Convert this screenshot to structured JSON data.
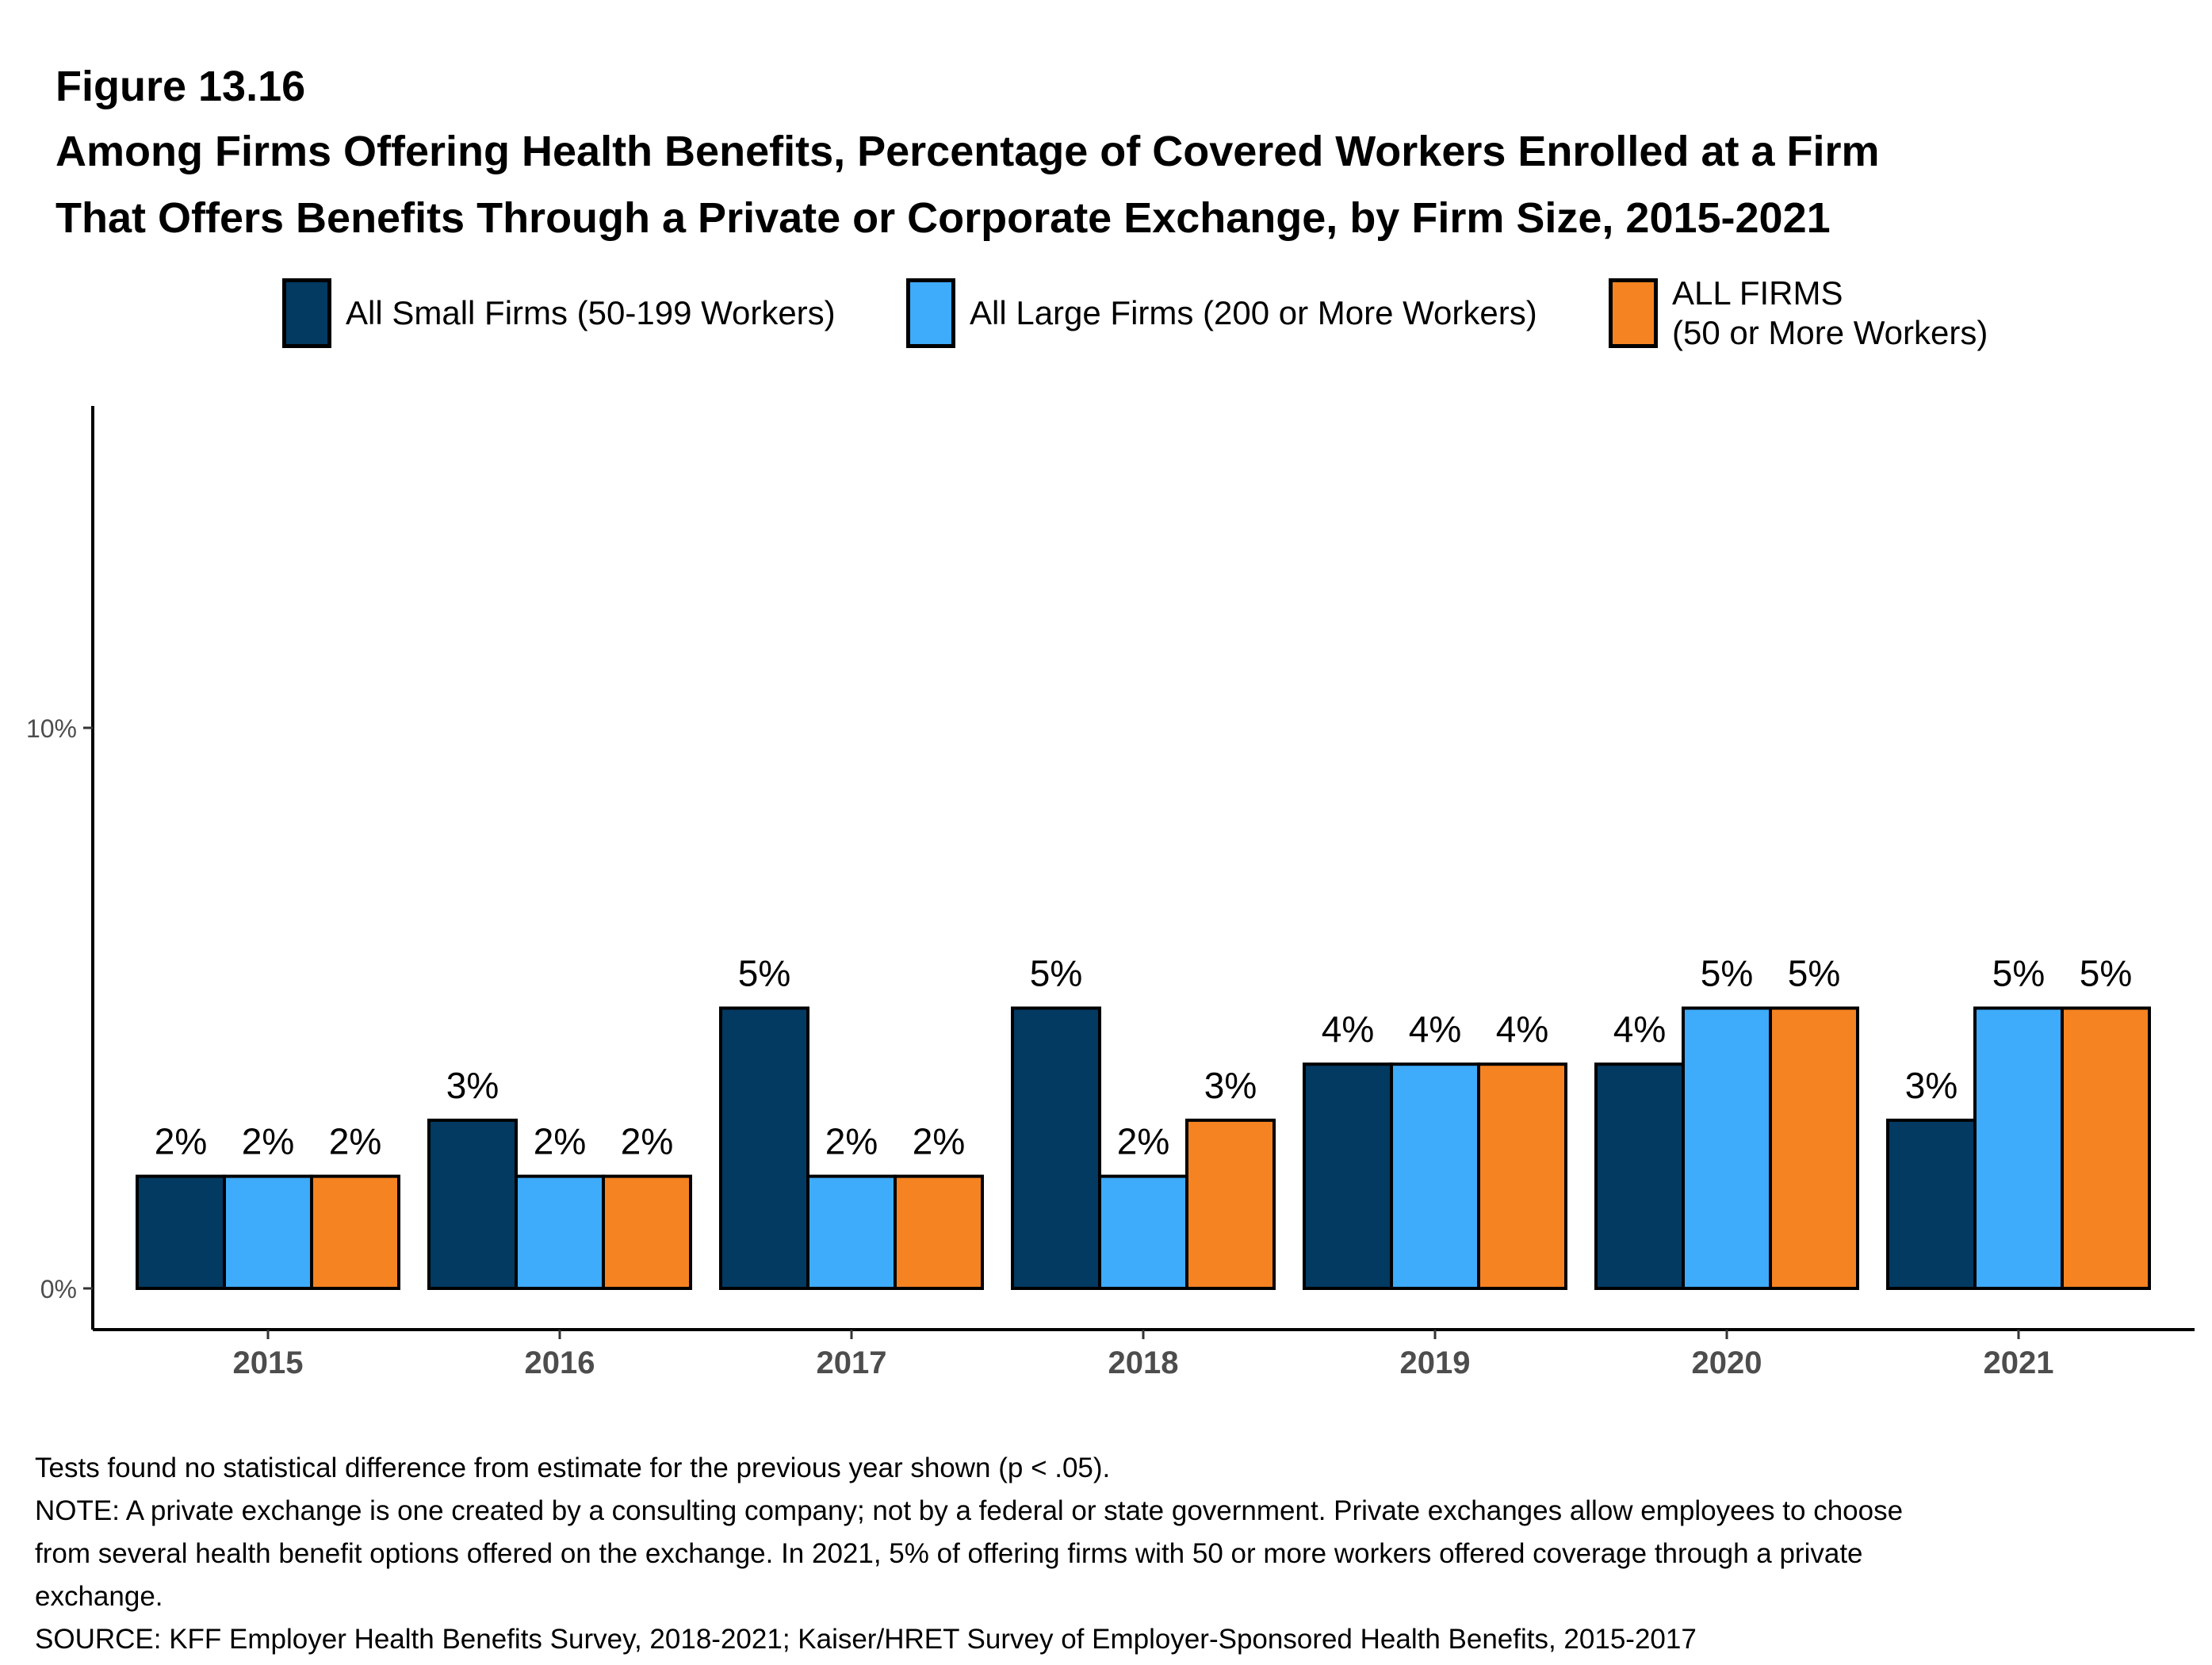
{
  "figure_label": "Figure 13.16",
  "title_lines": [
    "Among Firms Offering Health Benefits, Percentage of Covered Workers Enrolled at a Firm",
    "That Offers Benefits Through a Private or Corporate Exchange, by Firm Size, 2015-2021"
  ],
  "legend": [
    {
      "label": "All Small Firms (50-199 Workers)",
      "color": "#023a62"
    },
    {
      "label": "All Large Firms (200 or More Workers)",
      "color": "#3eabfb"
    },
    {
      "label": "ALL FIRMS\n(50 or More Workers)",
      "color": "#f58322"
    }
  ],
  "chart_data": {
    "type": "bar",
    "title": "Among Firms Offering Health Benefits, Percentage of Covered Workers Enrolled at a Firm That Offers Benefits Through a Private or Corporate Exchange, by Firm Size, 2015-2021",
    "xlabel": "",
    "ylabel": "",
    "categories": [
      "2015",
      "2016",
      "2017",
      "2018",
      "2019",
      "2020",
      "2021"
    ],
    "series": [
      {
        "name": "All Small Firms (50-199 Workers)",
        "color": "#023a62",
        "values": [
          2,
          3,
          5,
          5,
          4,
          4,
          3
        ],
        "labels": [
          "2%",
          "3%",
          "5%",
          "5%",
          "4%",
          "4%",
          "3%"
        ]
      },
      {
        "name": "All Large Firms (200 or More Workers)",
        "color": "#3eabfb",
        "values": [
          2,
          2,
          2,
          2,
          4,
          5,
          5
        ],
        "labels": [
          "2%",
          "2%",
          "2%",
          "2%",
          "4%",
          "5%",
          "5%"
        ]
      },
      {
        "name": "ALL FIRMS (50 or More Workers)",
        "color": "#f58322",
        "values": [
          2,
          2,
          2,
          3,
          4,
          5,
          5
        ],
        "labels": [
          "2%",
          "2%",
          "2%",
          "3%",
          "4%",
          "5%",
          "5%"
        ]
      }
    ],
    "yticks": [
      0,
      10
    ],
    "ytick_labels": [
      "0%",
      "10%"
    ],
    "ylim": [
      -0.4,
      15.7
    ],
    "grid": false,
    "legend_position": "top"
  },
  "footnotes": [
    "Tests found no statistical difference from estimate for the previous year shown (p < .05).",
    "NOTE: A private exchange is one created by a consulting company; not by a federal or state government. Private exchanges allow employees to choose",
    "from several health benefit options offered on the exchange. In 2021, 5% of offering firms with 50 or more workers offered coverage through a private",
    "exchange.",
    "SOURCE: KFF Employer Health Benefits Survey, 2018-2021; Kaiser/HRET Survey of Employer-Sponsored Health Benefits, 2015-2017"
  ]
}
